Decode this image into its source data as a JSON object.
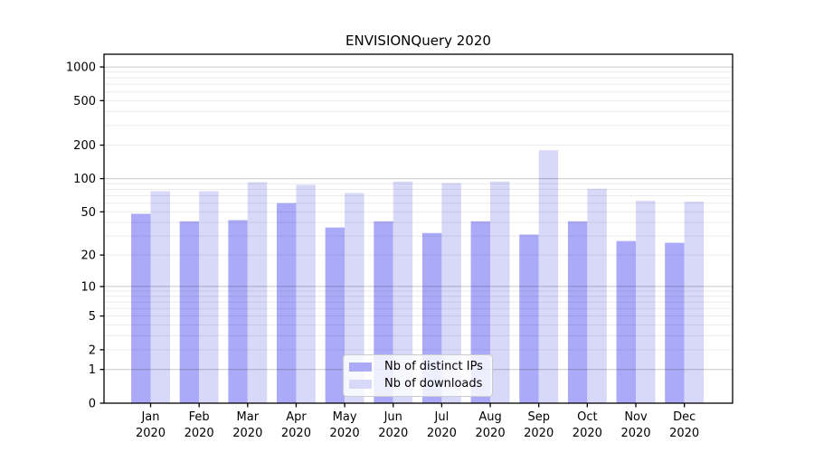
{
  "title": "ENVISIONQuery 2020",
  "legend": {
    "items": [
      {
        "label": "Nb of distinct IPs",
        "color": "#aaaaf8"
      },
      {
        "label": "Nb of downloads",
        "color": "#d8d8f8"
      }
    ]
  },
  "chart_data": {
    "type": "bar",
    "title": "ENVISIONQuery 2020",
    "categories": [
      "Jan",
      "Feb",
      "Mar",
      "Apr",
      "May",
      "Jun",
      "Jul",
      "Aug",
      "Sep",
      "Oct",
      "Nov",
      "Dec"
    ],
    "category_year": "2020",
    "series": [
      {
        "name": "Nb of distinct IPs",
        "color": "#aaaaf8",
        "values": [
          48,
          41,
          42,
          60,
          36,
          41,
          32,
          41,
          31,
          41,
          27,
          26
        ]
      },
      {
        "name": "Nb of downloads",
        "color": "#d8d8f8",
        "values": [
          77,
          77,
          93,
          88,
          74,
          94,
          91,
          94,
          180,
          81,
          63,
          62
        ]
      }
    ],
    "xlabel": "",
    "ylabel": "",
    "y_scale": "log1p",
    "y_ticks": [
      0,
      1,
      2,
      5,
      10,
      20,
      50,
      100,
      200,
      500,
      1000
    ],
    "ylim": [
      0,
      1300
    ],
    "grid": true,
    "legend_position": "lower-center",
    "colors": {
      "grid_major": "rgba(0,0,0,0.22)",
      "grid_minor": "rgba(0,0,0,0.08)",
      "axis": "#000000",
      "background": "#ffffff"
    }
  }
}
